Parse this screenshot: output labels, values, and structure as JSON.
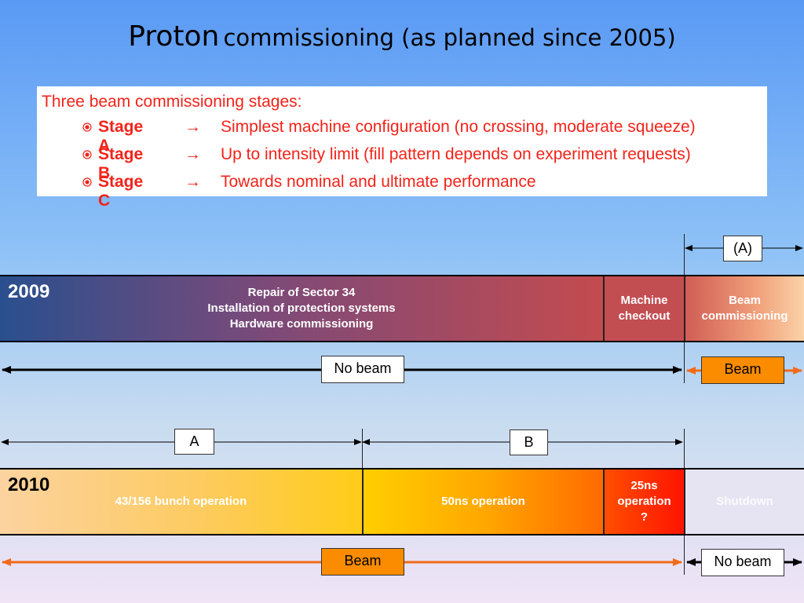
{
  "title": {
    "main": "Proton",
    "rest": "commissioning (as planned since 2005)"
  },
  "stages": {
    "heading": "Three beam commissioning stages:",
    "arrow": "→",
    "items": [
      {
        "name": "Stage A",
        "desc": "Simplest machine configuration (no crossing, moderate squeeze)"
      },
      {
        "name": "Stage B",
        "desc": "Up to intensity limit (fill pattern depends on experiment requests)"
      },
      {
        "name": "Stage C",
        "desc": "Towards nominal and ultimate performance"
      }
    ]
  },
  "row2009": {
    "year": "2009",
    "main_lines": [
      "Repair of Sector 34",
      "Installation of protection systems",
      "Hardware commissioning"
    ],
    "checkout": "Machine checkout",
    "beam_comm": "Beam commissioning",
    "top_label": "(A)",
    "no_beam": "No beam",
    "beam": "Beam"
  },
  "row2010": {
    "year": "2010",
    "seg1": "43/156 bunch operation",
    "seg2": "50ns operation",
    "seg3_lines": [
      "25ns",
      "operation",
      "?"
    ],
    "seg4": "Shutdown",
    "label_a": "A",
    "label_b": "B",
    "beam": "Beam",
    "no_beam": "No beam"
  },
  "colors": {
    "accent_red": "#f2231a",
    "beam_orange": "#fb8c00",
    "arrow_orange": "#f26a1b"
  }
}
